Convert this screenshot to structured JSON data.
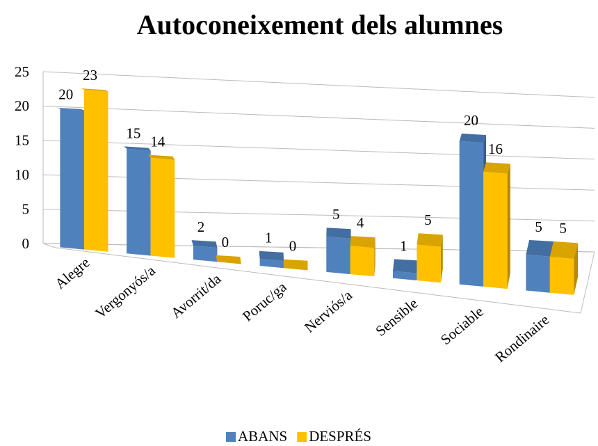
{
  "chart_data": {
    "type": "bar3d",
    "title": "Autoconeixement dels alumnes",
    "categories": [
      "Alegre",
      "Vergonyós/a",
      "Avorrit/da",
      "Poruc/ga",
      "Nerviós/a",
      "Sensible",
      "Sociable",
      "Rondinaire"
    ],
    "series": [
      {
        "name": "ABANS",
        "color": "#4f81bd",
        "values": [
          20,
          15,
          2,
          1,
          5,
          1,
          20,
          5
        ]
      },
      {
        "name": "DESPRÉS",
        "color": "#ffc000",
        "values": [
          23,
          14,
          0,
          0,
          4,
          5,
          16,
          5
        ]
      }
    ],
    "ylim": [
      0,
      25
    ],
    "yticks": [
      0,
      5,
      10,
      15,
      20,
      25
    ],
    "grid": true,
    "legend": "bottom"
  }
}
